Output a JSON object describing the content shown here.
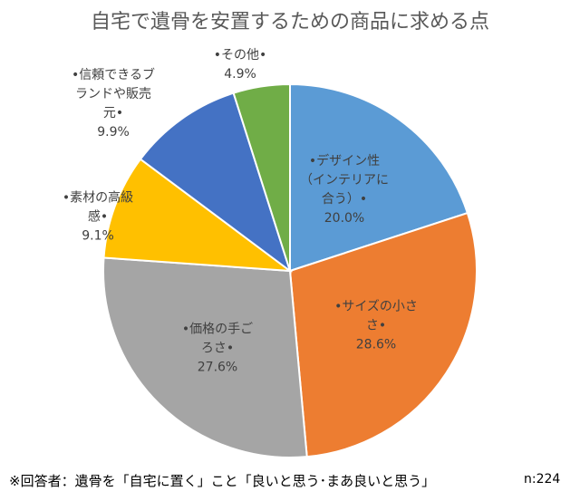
{
  "chart_data": {
    "type": "pie",
    "title": "自宅で遺骨を安置するための商品に求める点",
    "slices": [
      {
        "label": "•デザイン性（インテリアに合う）•",
        "lines": [
          "•デザイン性",
          "（インテリアに",
          "合う）•"
        ],
        "value": 20.0,
        "value_label": "20.0%",
        "color": "#5B9BD5"
      },
      {
        "label": "•サイズの小ささ•",
        "lines": [
          "•サイズの小さ",
          "さ•"
        ],
        "value": 28.6,
        "value_label": "28.6%",
        "color": "#ED7D31"
      },
      {
        "label": "•価格の手ごろさ•",
        "lines": [
          "•価格の手ご",
          "ろさ•"
        ],
        "value": 27.6,
        "value_label": "27.6%",
        "color": "#A5A5A5"
      },
      {
        "label": "•素材の高級感•",
        "lines": [
          "•素材の高級",
          "感•"
        ],
        "value": 9.1,
        "value_label": "9.1%",
        "color": "#FFC000"
      },
      {
        "label": "•信頼できるブランドや販売元•",
        "lines": [
          "•信頼できるブ",
          "ランドや販売",
          "元•"
        ],
        "value": 9.9,
        "value_label": "9.9%",
        "color": "#4472C4"
      },
      {
        "label": "•その他•",
        "lines": [
          "•その他•"
        ],
        "value": 4.9,
        "value_label": "4.9%",
        "color": "#70AD47"
      }
    ],
    "start": "12 o'clock, clockwise",
    "legend": "none"
  },
  "footnote": "※回答者：遺骨を「自宅に置く」こと「良いと思う･まあ良いと思う」",
  "sample_size": "n:224"
}
